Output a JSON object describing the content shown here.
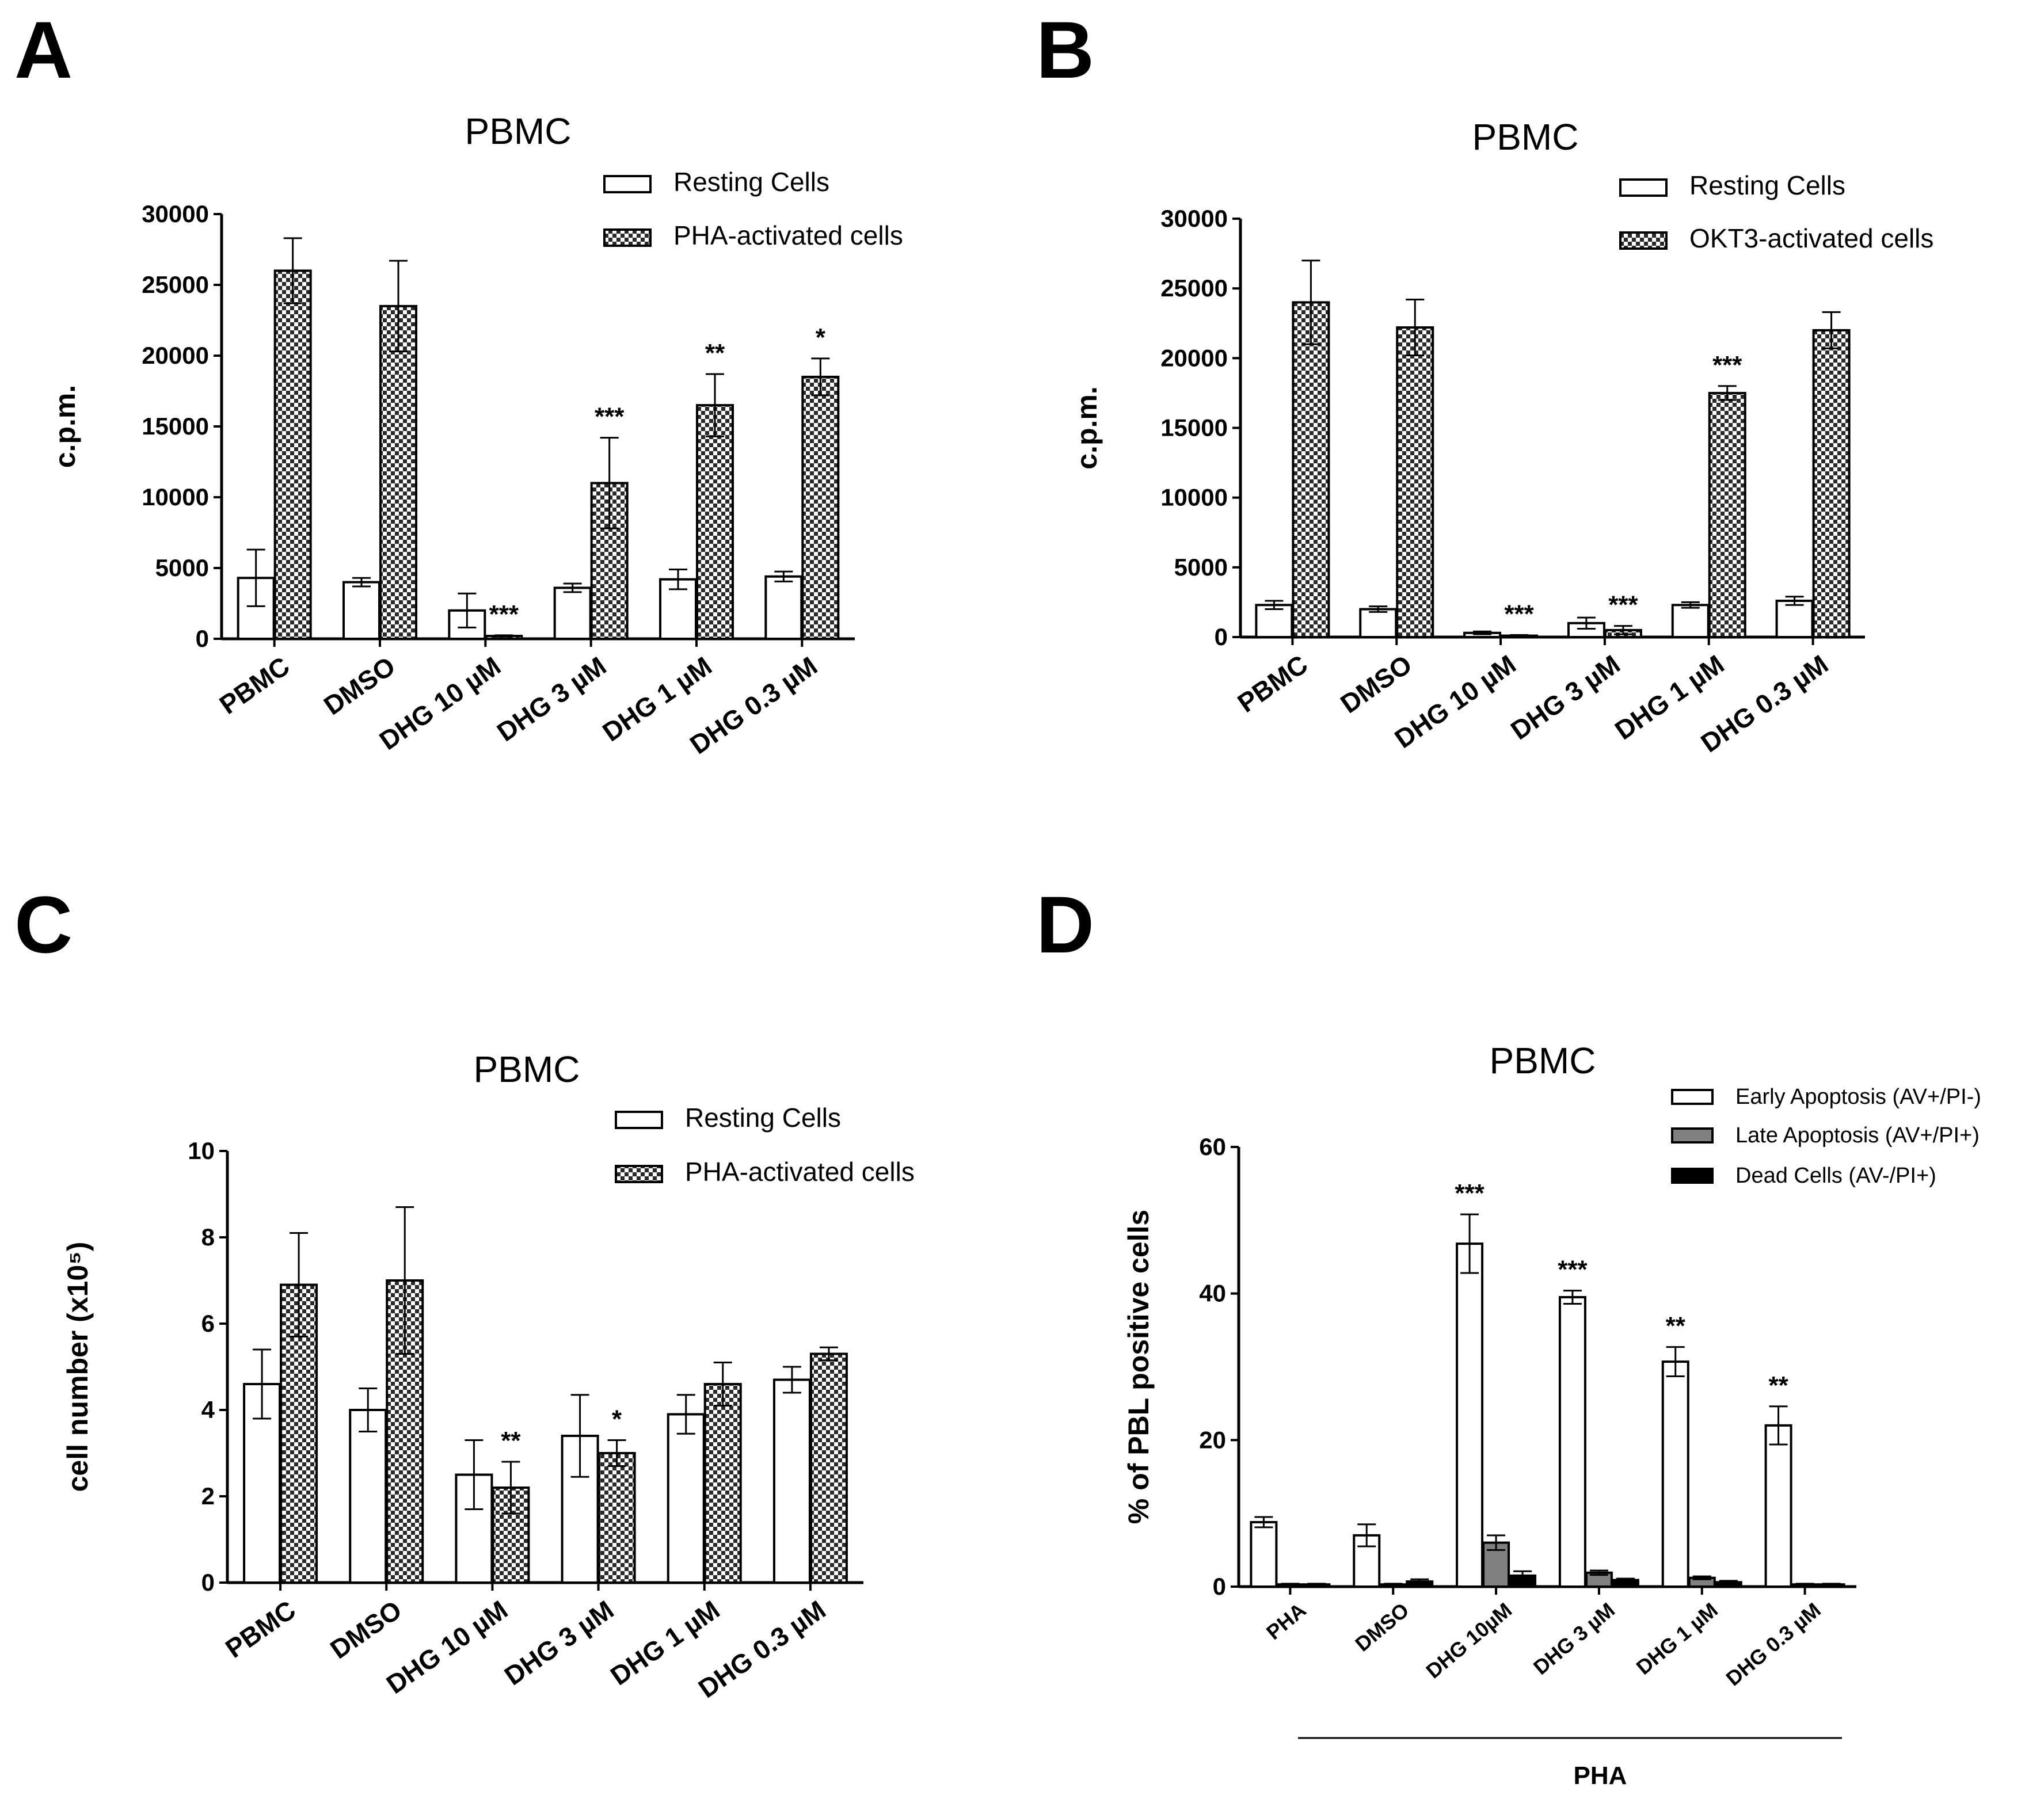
{
  "panels": [
    "A",
    "B",
    "C",
    "D"
  ],
  "colors": {
    "open": "#ffffff",
    "late": "#808080",
    "dead": "#000000",
    "axis": "#000000"
  },
  "chart_data": [
    {
      "panel": "A",
      "type": "bar",
      "title": "PBMC",
      "ylabel": "c.p.m.",
      "ylim": [
        0,
        30000
      ],
      "yticks": [
        "0",
        "5000",
        "10000",
        "15000",
        "20000",
        "25000",
        "30000"
      ],
      "categories": [
        "PBMC",
        "DMSO",
        "DHG 10 µM",
        "DHG 3 µM",
        "DHG 1 µM",
        "DHG 0.3 µM"
      ],
      "series": [
        {
          "name": "Resting Cells",
          "pattern": "open",
          "values": [
            4300,
            4000,
            2000,
            3600,
            4200,
            4400
          ],
          "errors": [
            2000,
            300,
            1200,
            300,
            700,
            350
          ]
        },
        {
          "name": "PHA-activated cells",
          "pattern": "checker",
          "values": [
            26000,
            23500,
            200,
            11000,
            16500,
            18500
          ],
          "errors": [
            2300,
            3200,
            50,
            3200,
            2200,
            1300
          ]
        }
      ],
      "annotations": [
        {
          "category": 2,
          "series": 1,
          "text": "***"
        },
        {
          "category": 3,
          "series": 1,
          "text": "***"
        },
        {
          "category": 4,
          "series": 1,
          "text": "**"
        },
        {
          "category": 5,
          "series": 1,
          "text": "*"
        }
      ],
      "legend_position": "top-right"
    },
    {
      "panel": "B",
      "type": "bar",
      "title": "PBMC",
      "ylabel": "c.p.m.",
      "ylim": [
        0,
        30000
      ],
      "yticks": [
        "0",
        "5000",
        "10000",
        "15000",
        "20000",
        "25000",
        "30000"
      ],
      "categories": [
        "PBMC",
        "DMSO",
        "DHG 10 µM",
        "DHG 3 µM",
        "DHG 1 µM",
        "DHG 0.3 µM"
      ],
      "series": [
        {
          "name": "Resting Cells",
          "pattern": "open",
          "values": [
            2300,
            2000,
            300,
            1000,
            2300,
            2600
          ],
          "errors": [
            300,
            200,
            100,
            400,
            200,
            300
          ]
        },
        {
          "name": "OKT3-activated cells",
          "pattern": "checker",
          "values": [
            24000,
            22200,
            100,
            500,
            17500,
            22000
          ],
          "errors": [
            3000,
            2000,
            50,
            300,
            500,
            1300
          ]
        }
      ],
      "annotations": [
        {
          "category": 2,
          "series": 1,
          "text": "***"
        },
        {
          "category": 3,
          "series": 1,
          "text": "***"
        },
        {
          "category": 4,
          "series": 1,
          "text": "***"
        }
      ],
      "legend_position": "top-right"
    },
    {
      "panel": "C",
      "type": "bar",
      "title": "PBMC",
      "ylabel": "cell number (x10⁵)",
      "ylim": [
        0,
        10
      ],
      "yticks": [
        "0",
        "2",
        "4",
        "6",
        "8",
        "10"
      ],
      "categories": [
        "PBMC",
        "DMSO",
        "DHG 10 µM",
        "DHG 3 µM",
        "DHG 1 µM",
        "DHG 0.3 µM"
      ],
      "series": [
        {
          "name": "Resting Cells",
          "pattern": "open",
          "values": [
            4.6,
            4.0,
            2.5,
            3.4,
            3.9,
            4.7
          ],
          "errors": [
            0.8,
            0.5,
            0.8,
            0.95,
            0.45,
            0.3
          ]
        },
        {
          "name": "PHA-activated cells",
          "pattern": "checker",
          "values": [
            6.9,
            7.0,
            2.2,
            3.0,
            4.6,
            5.3
          ],
          "errors": [
            1.2,
            1.7,
            0.6,
            0.3,
            0.5,
            0.15
          ]
        }
      ],
      "annotations": [
        {
          "category": 2,
          "series": 1,
          "text": "**"
        },
        {
          "category": 3,
          "series": 1,
          "text": "*"
        }
      ],
      "legend_position": "top-right"
    },
    {
      "panel": "D",
      "type": "bar",
      "title": "PBMC",
      "ylabel": "% of PBL positive cells",
      "ylim": [
        0,
        60
      ],
      "yticks": [
        "0",
        "20",
        "40",
        "60"
      ],
      "categories": [
        "PHA",
        "DMSO",
        "DHG 10µM",
        "DHG 3 µM",
        "DHG 1 µM",
        "DHG 0.3 µM"
      ],
      "group_label": "PHA",
      "series": [
        {
          "name": "Early Apoptosis (AV+/PI-)",
          "pattern": "open",
          "values": [
            8.8,
            7.0,
            46.8,
            39.5,
            30.7,
            22.0
          ],
          "errors": [
            0.7,
            1.5,
            4.0,
            0.9,
            2.0,
            2.6
          ]
        },
        {
          "name": "Late Apoptosis (AV+/PI+)",
          "pattern": "gray",
          "values": [
            0.3,
            0.3,
            6.0,
            1.9,
            1.2,
            0.3
          ],
          "errors": [
            0.1,
            0.1,
            1.0,
            0.3,
            0.2,
            0.1
          ]
        },
        {
          "name": "Dead Cells (AV-/PI+)",
          "pattern": "black",
          "values": [
            0.3,
            0.7,
            1.5,
            0.9,
            0.6,
            0.3
          ],
          "errors": [
            0.1,
            0.3,
            0.6,
            0.2,
            0.2,
            0.1
          ]
        }
      ],
      "annotations": [
        {
          "category": 2,
          "series": 0,
          "text": "***"
        },
        {
          "category": 3,
          "series": 0,
          "text": "***"
        },
        {
          "category": 4,
          "series": 0,
          "text": "**"
        },
        {
          "category": 5,
          "series": 0,
          "text": "**"
        }
      ],
      "legend_position": "top-right"
    }
  ]
}
